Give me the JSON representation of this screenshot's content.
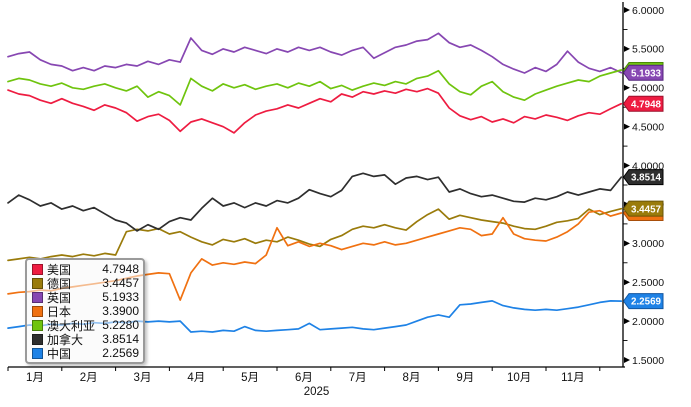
{
  "chart_data": {
    "type": "line",
    "title": "",
    "x_axis": {
      "month_labels": [
        "1月",
        "2月",
        "3月",
        "4月",
        "5月",
        "6月",
        "7月",
        "8月",
        "9月",
        "10月",
        "11月"
      ],
      "year_label": "2025"
    },
    "y_axis": {
      "min": 1.5,
      "max": 6.0,
      "major_step": 0.5,
      "minor_step": 0.25,
      "decimals": 4,
      "tick_labels": [
        "6.0000",
        "5.5000",
        "5.0000",
        "4.5000",
        "4.0000",
        "3.5000",
        "3.0000",
        "2.5000",
        "2.0000",
        "1.5000"
      ],
      "side": "right"
    },
    "x_domain": {
      "start_month": 0,
      "end_month": 11.4,
      "points_per_series": 58
    },
    "grid": "off",
    "legend_position": "bottom-left",
    "legend_order": [
      "usa",
      "germany",
      "uk",
      "japan",
      "australia",
      "canada",
      "china"
    ],
    "series": [
      {
        "key": "usa",
        "name": "美国",
        "color": "#ee1c41",
        "border": "#9c0f2a",
        "last_value_label": "4.7948",
        "last_value": 4.7948,
        "values": [
          4.97,
          4.92,
          4.9,
          4.84,
          4.8,
          4.86,
          4.8,
          4.76,
          4.71,
          4.78,
          4.74,
          4.68,
          4.57,
          4.63,
          4.66,
          4.58,
          4.44,
          4.56,
          4.6,
          4.55,
          4.5,
          4.42,
          4.55,
          4.65,
          4.7,
          4.73,
          4.78,
          4.74,
          4.8,
          4.86,
          4.82,
          4.92,
          4.88,
          4.95,
          4.92,
          4.96,
          4.93,
          4.98,
          4.95,
          4.99,
          4.93,
          4.74,
          4.64,
          4.59,
          4.63,
          4.56,
          4.6,
          4.55,
          4.63,
          4.6,
          4.65,
          4.62,
          4.58,
          4.64,
          4.68,
          4.66,
          4.73,
          4.7948
        ]
      },
      {
        "key": "germany",
        "name": "德国",
        "color": "#9a7b0b",
        "border": "#6b5507",
        "last_value_label": "3.4457",
        "last_value": 3.4457,
        "values": [
          2.78,
          2.8,
          2.82,
          2.8,
          2.83,
          2.85,
          2.83,
          2.86,
          2.84,
          2.87,
          2.85,
          3.15,
          3.18,
          3.16,
          3.19,
          3.12,
          3.15,
          3.08,
          3.02,
          2.98,
          3.05,
          3.02,
          3.06,
          3.0,
          3.04,
          3.02,
          3.08,
          3.04,
          2.99,
          2.96,
          3.05,
          3.1,
          3.18,
          3.22,
          3.2,
          3.24,
          3.2,
          3.17,
          3.28,
          3.37,
          3.44,
          3.31,
          3.36,
          3.33,
          3.3,
          3.28,
          3.26,
          3.22,
          3.19,
          3.18,
          3.22,
          3.27,
          3.29,
          3.32,
          3.44,
          3.37,
          3.41,
          3.4457
        ]
      },
      {
        "key": "uk",
        "name": "英国",
        "color": "#8747b2",
        "border": "#54257d",
        "last_value_label": "5.1933",
        "last_value": 5.1933,
        "values": [
          5.4,
          5.44,
          5.46,
          5.36,
          5.3,
          5.28,
          5.22,
          5.26,
          5.22,
          5.28,
          5.26,
          5.3,
          5.28,
          5.34,
          5.3,
          5.36,
          5.33,
          5.64,
          5.48,
          5.43,
          5.5,
          5.46,
          5.52,
          5.48,
          5.44,
          5.5,
          5.46,
          5.52,
          5.48,
          5.52,
          5.46,
          5.42,
          5.48,
          5.52,
          5.38,
          5.45,
          5.52,
          5.55,
          5.6,
          5.62,
          5.7,
          5.58,
          5.52,
          5.55,
          5.48,
          5.4,
          5.3,
          5.24,
          5.19,
          5.26,
          5.21,
          5.3,
          5.47,
          5.33,
          5.25,
          5.21,
          5.26,
          5.1933
        ]
      },
      {
        "key": "japan",
        "name": "日本",
        "color": "#f07111",
        "border": "#a84e0a",
        "last_value_label": "3.3900",
        "last_value": 3.39,
        "values": [
          2.35,
          2.37,
          2.38,
          2.4,
          2.39,
          2.42,
          2.44,
          2.46,
          2.48,
          2.5,
          2.52,
          2.55,
          2.58,
          2.6,
          2.62,
          2.61,
          2.27,
          2.62,
          2.8,
          2.72,
          2.75,
          2.73,
          2.76,
          2.74,
          2.85,
          3.2,
          2.97,
          3.02,
          2.96,
          3.0,
          2.97,
          2.92,
          2.96,
          3.0,
          2.98,
          3.02,
          2.98,
          3.0,
          3.04,
          3.08,
          3.12,
          3.16,
          3.2,
          3.18,
          3.1,
          3.12,
          3.33,
          3.12,
          3.06,
          3.04,
          3.03,
          3.08,
          3.15,
          3.25,
          3.4,
          3.42,
          3.35,
          3.39
        ]
      },
      {
        "key": "australia",
        "name": "澳大利亚",
        "color": "#6fc40e",
        "border": "#4a8a06",
        "last_value_label": "5.2280",
        "last_value": 5.228,
        "values": [
          5.08,
          5.12,
          5.1,
          5.05,
          5.02,
          5.06,
          5.0,
          4.98,
          5.02,
          5.05,
          5.0,
          4.96,
          5.02,
          4.88,
          4.95,
          4.9,
          4.78,
          5.12,
          5.02,
          4.96,
          5.05,
          5.0,
          5.04,
          4.98,
          5.02,
          5.05,
          5.0,
          5.06,
          5.02,
          5.08,
          4.99,
          5.03,
          4.97,
          5.02,
          5.06,
          5.03,
          5.08,
          5.05,
          5.12,
          5.15,
          5.22,
          5.05,
          4.95,
          4.91,
          5.02,
          5.08,
          4.95,
          4.88,
          4.84,
          4.92,
          4.97,
          5.02,
          5.06,
          5.1,
          5.08,
          5.15,
          5.19,
          5.228
        ]
      },
      {
        "key": "canada",
        "name": "加拿大",
        "color": "#2e2e2e",
        "border": "#000000",
        "last_value_label": "3.8514",
        "last_value": 3.8514,
        "values": [
          3.52,
          3.62,
          3.56,
          3.48,
          3.52,
          3.44,
          3.48,
          3.42,
          3.46,
          3.38,
          3.3,
          3.26,
          3.16,
          3.24,
          3.18,
          3.28,
          3.33,
          3.3,
          3.45,
          3.58,
          3.48,
          3.52,
          3.46,
          3.52,
          3.48,
          3.55,
          3.52,
          3.58,
          3.69,
          3.64,
          3.6,
          3.68,
          3.86,
          3.9,
          3.86,
          3.88,
          3.76,
          3.84,
          3.86,
          3.82,
          3.85,
          3.66,
          3.7,
          3.64,
          3.6,
          3.62,
          3.58,
          3.54,
          3.53,
          3.58,
          3.56,
          3.6,
          3.66,
          3.62,
          3.66,
          3.7,
          3.68,
          3.8514
        ]
      },
      {
        "key": "china",
        "name": "中国",
        "color": "#1e82e6",
        "border": "#1256a0",
        "last_value_label": "2.2569",
        "last_value": 2.2569,
        "values": [
          1.91,
          1.93,
          1.95,
          1.94,
          1.96,
          1.95,
          1.97,
          1.96,
          1.98,
          1.97,
          1.99,
          1.98,
          2.0,
          1.99,
          2.0,
          1.99,
          2.0,
          1.86,
          1.87,
          1.86,
          1.88,
          1.87,
          1.93,
          1.88,
          1.87,
          1.88,
          1.89,
          1.9,
          1.97,
          1.89,
          1.9,
          1.91,
          1.92,
          1.9,
          1.89,
          1.91,
          1.93,
          1.95,
          2.0,
          2.05,
          2.08,
          2.05,
          2.21,
          2.22,
          2.24,
          2.26,
          2.2,
          2.17,
          2.15,
          2.14,
          2.15,
          2.14,
          2.16,
          2.18,
          2.21,
          2.24,
          2.26,
          2.2569
        ]
      }
    ],
    "axis_tag_draw_order": [
      "australia",
      "uk",
      "usa",
      "japan",
      "germany",
      "canada",
      "china"
    ],
    "colors": {
      "axis": "#000000",
      "tick_text": "#111111",
      "tag_text": "#ffffff"
    }
  }
}
